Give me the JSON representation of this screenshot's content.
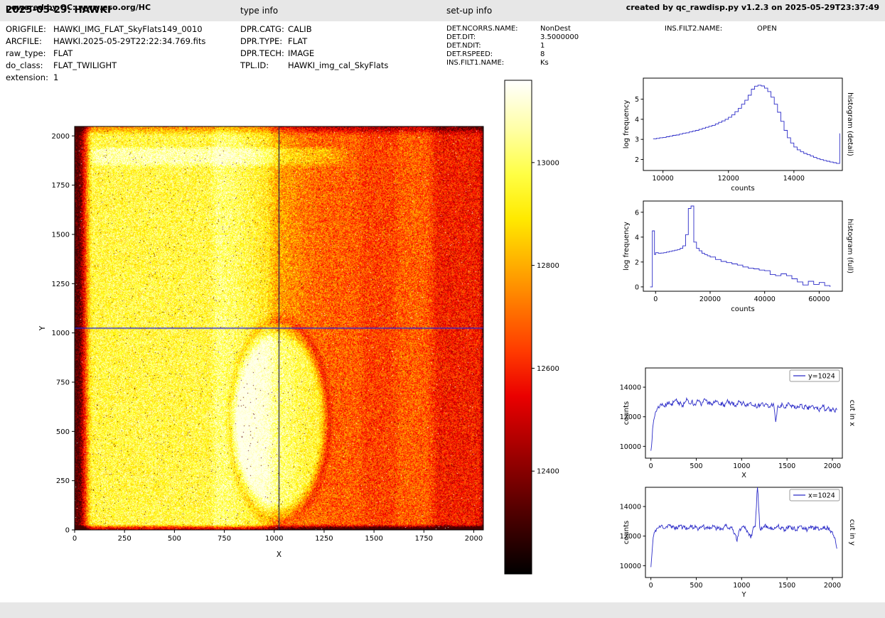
{
  "header": {
    "title": "2025-05-29: HAWKI",
    "type_info": "type info",
    "setup_info": "set-up info"
  },
  "metadata": {
    "file": [
      {
        "label": "ORIGFILE:",
        "value": "HAWKI_IMG_FLAT_SkyFlats149_0010"
      },
      {
        "label": "ARCFILE:",
        "value": "HAWKI.2025-05-29T22:22:34.769.fits"
      },
      {
        "label": "raw_type:",
        "value": "FLAT"
      },
      {
        "label": "do_class:",
        "value": "FLAT_TWILIGHT"
      },
      {
        "label": "extension:",
        "value": "1"
      }
    ],
    "type_info": [
      {
        "label": "DPR.CATG:",
        "value": "CALIB"
      },
      {
        "label": "DPR.TYPE:",
        "value": "FLAT"
      },
      {
        "label": "DPR.TECH:",
        "value": "IMAGE"
      },
      {
        "label": "TPL.ID:",
        "value": "HAWKI_img_cal_SkyFlats"
      }
    ],
    "setup_info": [
      {
        "label": "DET.NCORRS.NAME:",
        "value": "NonDest"
      },
      {
        "label": "DET.DIT:",
        "value": "3.5000000"
      },
      {
        "label": "DET.NDIT:",
        "value": "1"
      },
      {
        "label": "DET.RSPEED:",
        "value": "8"
      },
      {
        "label": "INS.FILT1.NAME:",
        "value": "Ks"
      }
    ],
    "setup_info2": [
      {
        "label": "INS.FILT2.NAME:",
        "value": "OPEN"
      }
    ]
  },
  "main_image": {
    "xlabel": "X",
    "ylabel": "Y",
    "x_ticks": [
      0,
      250,
      500,
      750,
      1000,
      1250,
      1500,
      1750,
      2000
    ],
    "y_ticks": [
      0,
      250,
      500,
      750,
      1000,
      1250,
      1500,
      1750,
      2000
    ],
    "extent": [
      0,
      2048
    ],
    "crosshair_x": 1024,
    "crosshair_y": 1024,
    "crosshair_v_color": "#15154f",
    "crosshair_h_color": "#2525d8",
    "colormap": "hot"
  },
  "colorbar": {
    "colormap": "hot",
    "vmin": 12200,
    "vmax": 13160,
    "ticks": [
      13000,
      12800,
      12600,
      12400
    ],
    "gradient": [
      "#000000 0%",
      "#3a0000 9%",
      "#750000 18%",
      "#b00000 27%",
      "#ea0000 36%",
      "#ff3a00 45%",
      "#ff7500 54%",
      "#ffb000 63%",
      "#ffea00 72%",
      "#ffff45 81%",
      "#ffffa5 90%",
      "#ffffff 100%"
    ]
  },
  "chart_data": [
    {
      "id": "histogram_detail",
      "type": "line",
      "style": "step",
      "right_label": "histogram (detail)",
      "xlabel": "counts",
      "ylabel": "log frequency",
      "xlim": [
        9400,
        15480
      ],
      "ylim": [
        1.45,
        6.05
      ],
      "xticks": [
        10000,
        12000,
        14000
      ],
      "yticks": [
        2,
        3,
        4,
        5
      ],
      "line_color": "#2c2cc8",
      "series": [
        {
          "name": "histogram",
          "x_start": 9700,
          "x_step": 100,
          "values": [
            3.02,
            3.05,
            3.08,
            3.1,
            3.13,
            3.16,
            3.2,
            3.22,
            3.26,
            3.3,
            3.33,
            3.37,
            3.41,
            3.45,
            3.5,
            3.55,
            3.6,
            3.65,
            3.7,
            3.77,
            3.85,
            3.92,
            4.0,
            4.1,
            4.22,
            4.38,
            4.55,
            4.75,
            4.95,
            5.2,
            5.5,
            5.65,
            5.7,
            5.66,
            5.55,
            5.38,
            5.1,
            4.75,
            4.35,
            3.9,
            3.45,
            3.08,
            2.82,
            2.62,
            2.48,
            2.38,
            2.3,
            2.24,
            2.17,
            2.1,
            2.04,
            1.99,
            1.95,
            1.91,
            1.87,
            1.84,
            1.8,
            3.3
          ]
        }
      ]
    },
    {
      "id": "histogram_full",
      "type": "line",
      "style": "step",
      "right_label": "histogram (full)",
      "xlabel": "counts",
      "ylabel": "log frequency",
      "xlim": [
        -4500,
        68500
      ],
      "ylim": [
        -0.35,
        6.9
      ],
      "xticks": [
        0,
        20000,
        40000,
        60000
      ],
      "yticks": [
        0,
        2,
        4,
        6
      ],
      "line_color": "#2c2cc8",
      "series": [
        {
          "name": "histogram",
          "x": [
            -2000,
            -1200,
            -400,
            0,
            1000,
            2000,
            3000,
            4000,
            5000,
            6000,
            7000,
            8000,
            9000,
            10000,
            11000,
            12000,
            13000,
            14000,
            15000,
            16000,
            17000,
            18000,
            19000,
            20000,
            22000,
            24000,
            26000,
            28000,
            30000,
            32000,
            34000,
            36000,
            38000,
            40000,
            42000,
            44000,
            46000,
            48000,
            50000,
            52000,
            54000,
            56000,
            58000,
            60000,
            62000,
            64000
          ],
          "y": [
            0.0,
            4.5,
            2.6,
            2.75,
            2.7,
            2.72,
            2.75,
            2.8,
            2.85,
            2.9,
            2.95,
            3.0,
            3.1,
            3.3,
            4.2,
            6.3,
            6.5,
            3.6,
            3.1,
            2.9,
            2.7,
            2.6,
            2.5,
            2.4,
            2.2,
            2.05,
            1.95,
            1.85,
            1.75,
            1.6,
            1.5,
            1.45,
            1.35,
            1.3,
            1.0,
            0.9,
            1.05,
            0.9,
            0.65,
            0.4,
            0.15,
            0.45,
            0.2,
            0.35,
            0.1,
            0.0
          ]
        }
      ]
    },
    {
      "id": "cut_in_x",
      "type": "line",
      "style": "noisy",
      "right_label": "cut in x",
      "xlabel": "X",
      "ylabel": "counts",
      "xlim": [
        -60,
        2110
      ],
      "ylim": [
        9200,
        15300
      ],
      "xticks": [
        0,
        500,
        1000,
        1500,
        2000
      ],
      "yticks": [
        10000,
        12000,
        14000
      ],
      "legend": "y=1024",
      "line_color": "#2c2cc8",
      "noise_amp": 160,
      "series": [
        {
          "name": "y=1024",
          "x_start": 0,
          "x_step": 25,
          "values": [
            9700,
            11500,
            12300,
            12600,
            12750,
            12900,
            12680,
            12840,
            13050,
            12780,
            12980,
            13120,
            12850,
            13020,
            12760,
            12990,
            13150,
            12880,
            13060,
            12790,
            12960,
            13080,
            12820,
            12990,
            13140,
            12860,
            13010,
            12770,
            12940,
            13070,
            12830,
            12980,
            12720,
            12900,
            13040,
            12800,
            12950,
            12700,
            12880,
            13010,
            12780,
            12930,
            12690,
            12850,
            12980,
            12740,
            12890,
            12650,
            12810,
            12940,
            12700,
            12850,
            12620,
            12780,
            12900,
            11650,
            12760,
            12620,
            12830,
            12580,
            12730,
            12870,
            12630,
            12770,
            12540,
            12690,
            12820,
            12580,
            12720,
            12490,
            12640,
            12760,
            12520,
            12660,
            12430,
            12580,
            12700,
            12460,
            12600,
            12370,
            12510,
            12330,
            12450
          ]
        }
      ]
    },
    {
      "id": "cut_in_y",
      "type": "line",
      "style": "noisy",
      "right_label": "cut in y",
      "xlabel": "Y",
      "ylabel": "counts",
      "xlim": [
        -60,
        2110
      ],
      "ylim": [
        9200,
        15300
      ],
      "xticks": [
        0,
        500,
        1000,
        1500,
        2000
      ],
      "yticks": [
        10000,
        12000,
        14000
      ],
      "legend": "x=1024",
      "line_color": "#2c2cc8",
      "noise_amp": 150,
      "series": [
        {
          "name": "x=1024",
          "x_start": 0,
          "x_step": 25,
          "values": [
            9900,
            11900,
            12400,
            12550,
            12600,
            12720,
            12520,
            12660,
            12780,
            12560,
            12690,
            12480,
            12620,
            12750,
            12540,
            12670,
            12460,
            12600,
            12730,
            12520,
            12650,
            12470,
            12600,
            12720,
            12510,
            12640,
            12450,
            12580,
            12710,
            12500,
            12630,
            12440,
            12570,
            12700,
            12490,
            12620,
            12430,
            12180,
            11650,
            12420,
            12560,
            12680,
            12470,
            12220,
            11850,
            12500,
            12650,
            15600,
            12580,
            12460,
            12600,
            12720,
            12510,
            12640,
            12450,
            12580,
            12700,
            12490,
            12620,
            12430,
            12560,
            12690,
            12480,
            12610,
            12420,
            12550,
            12680,
            12470,
            12600,
            12410,
            12540,
            12670,
            12460,
            12590,
            12400,
            12530,
            12660,
            12450,
            12580,
            12390,
            12300,
            11900,
            11150
          ]
        }
      ]
    }
  ],
  "footer": {
    "left": "powered by QC: www.eso.org/HC",
    "right": "created by qc_rawdisp.py v1.2.3 on 2025-05-29T23:37:49"
  }
}
